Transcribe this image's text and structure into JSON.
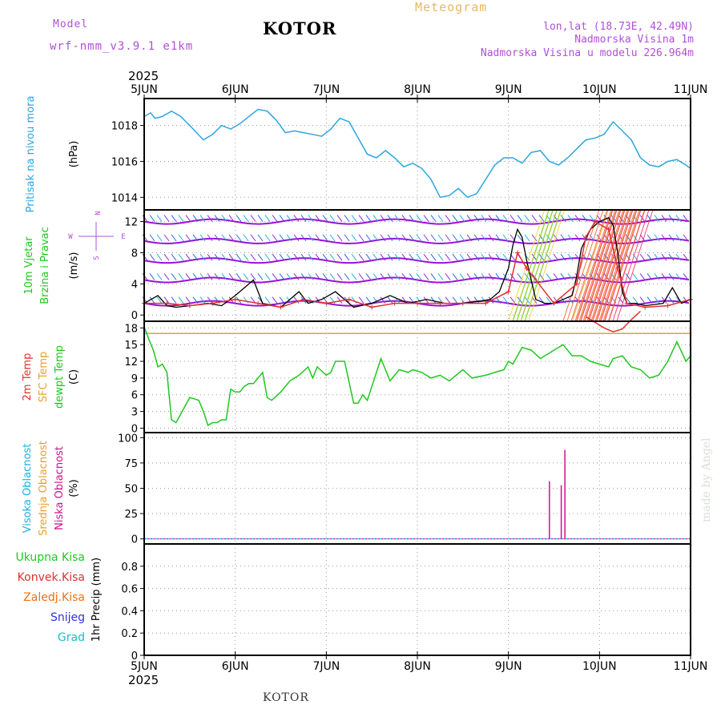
{
  "header": {
    "model_label": "Model",
    "model_name": "wrf-nmm_v3.9.1 e1km",
    "station": "KOTOR",
    "product": "Meteogram",
    "coords": "lon,lat (18.73E, 42.49N)",
    "elevation": "Nadmorska Visina 1m",
    "model_elevation": "Nadmorska Visina u modelu 226.964m",
    "year_top": "2025",
    "year_bottom": "2025",
    "footer_station": "KOTOR",
    "credit": "made by Angel"
  },
  "colors": {
    "pressure": "#2aa6e0",
    "temp2m": "#e03030",
    "sfc_temp": "#e8a030",
    "dewpt": "#1ec81e",
    "high_cloud": "#19b0e0",
    "mid_cloud": "#e8a030",
    "low_cloud": "#d0108a",
    "wind_speed": "#000000",
    "wind_gust": "#e03030",
    "wind_level": "#9a10d8",
    "total_precip": "#1ec81e",
    "conv_precip": "#e03030",
    "frozen_precip": "#f07010",
    "snow": "#3030e0",
    "hail": "#18c0c0"
  },
  "chart_data": [
    {
      "type": "line",
      "panel": "pressure",
      "ylabel_lines": [
        "Pritisak na nivou mora"
      ],
      "unit": "(hPa)",
      "x_ticks": [
        "5JUN",
        "6JUN",
        "7JUN",
        "8JUN",
        "9JUN",
        "10JUN",
        "11JUN"
      ],
      "x_range_days": [
        0,
        6
      ],
      "ylim": [
        1013.3,
        1019.5
      ],
      "y_ticks": [
        1014,
        1016,
        1018
      ],
      "series": [
        {
          "color_key": "pressure",
          "x": [
            0,
            0.07,
            0.12,
            0.2,
            0.3,
            0.4,
            0.5,
            0.65,
            0.75,
            0.85,
            0.95,
            1.05,
            1.15,
            1.25,
            1.35,
            1.45,
            1.55,
            1.65,
            1.75,
            1.85,
            1.95,
            2.05,
            2.15,
            2.25,
            2.35,
            2.45,
            2.55,
            2.65,
            2.75,
            2.85,
            2.95,
            3.05,
            3.15,
            3.25,
            3.35,
            3.45,
            3.55,
            3.65,
            3.75,
            3.85,
            3.95,
            4.05,
            4.15,
            4.25,
            4.35,
            4.45,
            4.55,
            4.65,
            4.75,
            4.85,
            4.95,
            5.05,
            5.15,
            5.25,
            5.35,
            5.45,
            5.55,
            5.65,
            5.75,
            5.85,
            5.95,
            6.0
          ],
          "y": [
            1018.5,
            1018.7,
            1018.4,
            1018.5,
            1018.8,
            1018.5,
            1018.0,
            1017.2,
            1017.5,
            1018.0,
            1017.8,
            1018.1,
            1018.5,
            1018.9,
            1018.8,
            1018.3,
            1017.6,
            1017.7,
            1017.6,
            1017.5,
            1017.4,
            1017.8,
            1018.4,
            1018.2,
            1017.3,
            1016.4,
            1016.2,
            1016.6,
            1016.2,
            1015.7,
            1015.9,
            1015.6,
            1015.0,
            1014.0,
            1014.1,
            1014.5,
            1014.0,
            1014.2,
            1015.0,
            1015.8,
            1016.2,
            1016.2,
            1015.9,
            1016.5,
            1016.6,
            1016.0,
            1015.8,
            1016.2,
            1016.7,
            1017.2,
            1017.3,
            1017.5,
            1018.2,
            1017.7,
            1017.2,
            1016.2,
            1015.8,
            1015.7,
            1016.0,
            1016.1,
            1015.8,
            1015.6
          ]
        }
      ]
    },
    {
      "type": "line",
      "panel": "wind",
      "ylabel_lines": [
        "10m Vjetar",
        "Brzina i Pravac"
      ],
      "unit": "(m/s)",
      "compass": {
        "north": "N",
        "east": "E",
        "west": "W",
        "south": "S"
      },
      "ylim": [
        -0.8,
        13.5
      ],
      "y_ticks": [
        0,
        4,
        8,
        12
      ],
      "series": [
        {
          "name": "wind_speed",
          "color_key": "wind_speed",
          "x": [
            0,
            0.15,
            0.25,
            0.35,
            0.5,
            0.7,
            0.85,
            1.0,
            1.1,
            1.2,
            1.3,
            1.5,
            1.7,
            1.8,
            1.95,
            2.1,
            2.3,
            2.5,
            2.7,
            2.9,
            3.1,
            3.3,
            3.5,
            3.7,
            3.8,
            3.9,
            4.0,
            4.05,
            4.1,
            4.15,
            4.2,
            4.3,
            4.4,
            4.5,
            4.6,
            4.7,
            4.75,
            4.8,
            4.9,
            5.0,
            5.1,
            5.15,
            5.2,
            5.25,
            5.3,
            5.4,
            5.5,
            5.7,
            5.8,
            5.9,
            6.0
          ],
          "y": [
            1.5,
            2.5,
            1.2,
            1.0,
            1.2,
            1.5,
            1.2,
            2.5,
            3.5,
            4.5,
            1.5,
            1.0,
            3.0,
            1.5,
            2.0,
            3.0,
            1.0,
            1.5,
            2.5,
            1.5,
            2.0,
            1.5,
            1.5,
            1.8,
            2.0,
            3.0,
            6.0,
            9.0,
            11.0,
            10.0,
            7.0,
            2.0,
            1.5,
            1.5,
            2.0,
            2.5,
            5.0,
            8.5,
            11.0,
            12.0,
            12.5,
            11.5,
            8.0,
            3.0,
            1.5,
            1.5,
            1.2,
            1.5,
            3.5,
            1.5,
            2.0
          ]
        },
        {
          "name": "wind_gust",
          "color_key": "wind_gust",
          "x": [
            0,
            0.25,
            0.5,
            0.75,
            1.0,
            1.25,
            1.5,
            1.75,
            2.0,
            2.25,
            2.5,
            2.75,
            3.0,
            3.25,
            3.5,
            3.75,
            4.0,
            4.1,
            4.2,
            4.5,
            4.75,
            4.85,
            4.95,
            5.1,
            5.2,
            5.3,
            5.5,
            5.75,
            6.0
          ],
          "y": [
            1.5,
            1.5,
            1.2,
            1.5,
            2.0,
            1.5,
            1.0,
            2.0,
            1.5,
            2.0,
            1.0,
            1.5,
            1.5,
            1.5,
            1.5,
            1.5,
            3.0,
            8.0,
            6.0,
            1.5,
            4.0,
            10.0,
            12.0,
            11.0,
            6.0,
            1.5,
            1.0,
            1.2,
            2.0
          ]
        }
      ]
    },
    {
      "type": "line",
      "panel": "temperature",
      "ylabel_lines": [
        "2m Temp",
        "SFC Temp",
        "dewpt Temp"
      ],
      "unit": "(C)",
      "ylim": [
        -0.8,
        19.2
      ],
      "y_ticks": [
        0,
        3,
        6,
        9,
        12,
        15,
        18
      ],
      "series": [
        {
          "name": "sfc_temp",
          "color_key": "sfc_temp",
          "x": [
            0,
            6
          ],
          "y": [
            17.0,
            17.0
          ]
        },
        {
          "name": "temp2m",
          "color_key": "temp2m",
          "x": [
            4.85,
            4.95,
            5.05,
            5.15,
            5.25,
            5.35,
            5.45
          ],
          "y": [
            20.0,
            19.0,
            18.0,
            17.3,
            17.8,
            19.5,
            21.0
          ]
        },
        {
          "name": "dewpt",
          "color_key": "dewpt",
          "x": [
            0,
            0.05,
            0.1,
            0.15,
            0.2,
            0.25,
            0.3,
            0.35,
            0.4,
            0.5,
            0.6,
            0.65,
            0.7,
            0.75,
            0.8,
            0.85,
            0.9,
            0.95,
            1.0,
            1.05,
            1.1,
            1.15,
            1.2,
            1.3,
            1.35,
            1.4,
            1.5,
            1.6,
            1.7,
            1.8,
            1.85,
            1.9,
            2.0,
            2.05,
            2.1,
            2.2,
            2.3,
            2.35,
            2.4,
            2.45,
            2.5,
            2.6,
            2.7,
            2.8,
            2.9,
            2.95,
            3.05,
            3.15,
            3.25,
            3.35,
            3.5,
            3.6,
            3.75,
            3.85,
            3.95,
            4.0,
            4.05,
            4.15,
            4.25,
            4.35,
            4.5,
            4.6,
            4.7,
            4.8,
            4.9,
            5.0,
            5.1,
            5.15,
            5.25,
            5.35,
            5.45,
            5.55,
            5.65,
            5.75,
            5.85,
            5.95,
            6.0
          ],
          "y": [
            18.2,
            16.0,
            14.0,
            11.0,
            11.5,
            10.0,
            1.5,
            1.0,
            2.5,
            5.5,
            5.0,
            3.0,
            0.5,
            1.0,
            1.0,
            1.5,
            1.5,
            7.0,
            6.5,
            6.5,
            7.5,
            8.0,
            8.0,
            10.0,
            5.5,
            5.0,
            6.5,
            8.5,
            9.5,
            11.0,
            9.0,
            11.0,
            9.5,
            10.0,
            12.0,
            12.0,
            4.5,
            4.5,
            6.0,
            5.0,
            7.5,
            12.5,
            8.5,
            10.5,
            10.0,
            10.5,
            10.0,
            9.0,
            9.5,
            8.5,
            10.5,
            9.0,
            9.5,
            10.0,
            10.5,
            12.0,
            11.5,
            14.5,
            14.0,
            12.5,
            14.0,
            15.0,
            13.0,
            13.0,
            12.0,
            11.5,
            11.0,
            12.5,
            13.0,
            11.0,
            10.5,
            9.0,
            9.5,
            12.0,
            15.5,
            12.0,
            13.0
          ]
        }
      ]
    },
    {
      "type": "bar",
      "panel": "cloud",
      "ylabel_lines": [
        "Visoka Oblacnost",
        "Srednja Oblacnost",
        "Niska Oblacnost"
      ],
      "unit": "(%)",
      "ylim": [
        -5,
        105
      ],
      "y_ticks": [
        0,
        25,
        50,
        75,
        100
      ],
      "series": [
        {
          "name": "low_cloud",
          "color_key": "low_cloud",
          "x": [
            4.45,
            4.58,
            4.62
          ],
          "values": [
            57,
            53,
            88
          ]
        }
      ]
    },
    {
      "type": "bar",
      "panel": "precip",
      "ylabel_lines": [
        "1hr Precip (mm)"
      ],
      "legend": [
        "Ukupna Kisa",
        "Konvek.Kisa",
        "Zaledj.Kisa",
        "Snijeg",
        "Grad"
      ],
      "ylim": [
        0,
        1.0
      ],
      "y_ticks": [
        0,
        0.2,
        0.4,
        0.6,
        0.8
      ],
      "series": []
    }
  ]
}
